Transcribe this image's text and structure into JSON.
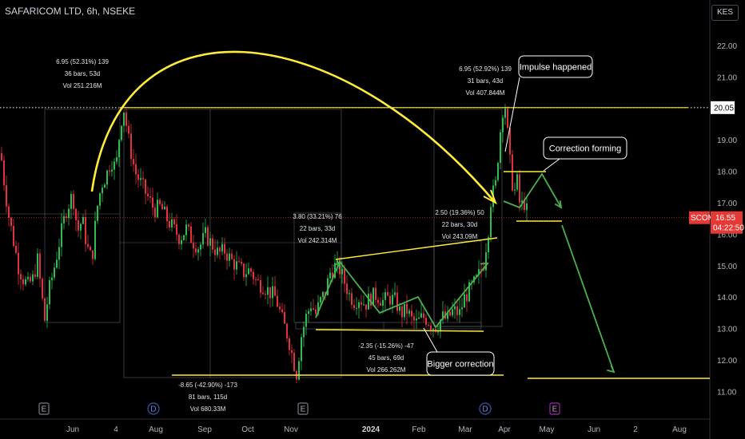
{
  "header": {
    "title": "SAFARICOM LTD, 6h, NSEKE",
    "currency": "KES"
  },
  "colors": {
    "background": "#000000",
    "up_candle": "#2ebd4f",
    "down_candle": "#e0333f",
    "trendline": "#ffeb3b",
    "arrow": "#4caf50",
    "price_tag": "#e53935"
  },
  "chart_data": {
    "type": "candlestick",
    "symbol": "SCOM",
    "last_price": "16.55",
    "countdown": "04:22:50",
    "resistance_price": "20.05",
    "ylim": [
      10.5,
      23.0
    ],
    "y_ticks": [
      "22.00",
      "21.00",
      "19.00",
      "18.00",
      "17.00",
      "16.00",
      "15.00",
      "14.00",
      "13.00",
      "12.00",
      "11.00"
    ],
    "x_ticks": [
      "Jun",
      "4",
      "Aug",
      "Sep",
      "Oct",
      "Nov",
      "2024",
      "Feb",
      "Mar",
      "Apr",
      "May",
      "Jun",
      "2",
      "Aug"
    ],
    "earnings_markers": [
      "E",
      "D",
      "E",
      "D",
      "E"
    ],
    "price_path": [
      [
        0,
        18.6
      ],
      [
        5,
        17.5
      ],
      [
        10,
        16.6
      ],
      [
        16,
        15.8
      ],
      [
        22,
        15.0
      ],
      [
        28,
        14.6
      ],
      [
        34,
        14.4
      ],
      [
        40,
        14.6
      ],
      [
        46,
        15.2
      ],
      [
        52,
        13.9
      ],
      [
        55,
        13.3
      ],
      [
        60,
        14.2
      ],
      [
        68,
        15.1
      ],
      [
        75,
        16.0
      ],
      [
        82,
        16.8
      ],
      [
        90,
        17.3
      ],
      [
        96,
        16.1
      ],
      [
        102,
        16.5
      ],
      [
        108,
        15.6
      ],
      [
        114,
        15.2
      ],
      [
        120,
        16.8
      ],
      [
        126,
        17.6
      ],
      [
        132,
        17.9
      ],
      [
        138,
        18.4
      ],
      [
        144,
        18.1
      ],
      [
        150,
        19.6
      ],
      [
        154,
        20.0
      ],
      [
        160,
        19.0
      ],
      [
        168,
        18.0
      ],
      [
        176,
        17.6
      ],
      [
        184,
        17.2
      ],
      [
        192,
        16.8
      ],
      [
        200,
        16.9
      ],
      [
        208,
        16.5
      ],
      [
        216,
        16.2
      ],
      [
        224,
        15.9
      ],
      [
        232,
        16.2
      ],
      [
        240,
        15.8
      ],
      [
        248,
        15.6
      ],
      [
        256,
        16.0
      ],
      [
        264,
        15.7
      ],
      [
        272,
        15.4
      ],
      [
        280,
        15.5
      ],
      [
        288,
        15.2
      ],
      [
        296,
        15.0
      ],
      [
        304,
        14.8
      ],
      [
        312,
        14.9
      ],
      [
        320,
        14.5
      ],
      [
        328,
        14.4
      ],
      [
        336,
        14.2
      ],
      [
        344,
        14.0
      ],
      [
        352,
        13.3
      ],
      [
        360,
        12.7
      ],
      [
        366,
        12.0
      ],
      [
        370,
        11.6
      ],
      [
        376,
        12.8
      ],
      [
        382,
        13.4
      ],
      [
        388,
        13.8
      ],
      [
        394,
        13.5
      ],
      [
        400,
        13.9
      ],
      [
        406,
        14.2
      ],
      [
        412,
        14.8
      ],
      [
        418,
        15.0
      ],
      [
        424,
        14.9
      ],
      [
        430,
        14.5
      ],
      [
        436,
        14.1
      ],
      [
        442,
        13.9
      ],
      [
        448,
        14.0
      ],
      [
        456,
        13.8
      ],
      [
        462,
        14.0
      ],
      [
        470,
        14.1
      ],
      [
        478,
        13.9
      ],
      [
        486,
        14.0
      ],
      [
        494,
        13.9
      ],
      [
        500,
        13.5
      ],
      [
        508,
        13.6
      ],
      [
        514,
        13.3
      ],
      [
        520,
        13.2
      ],
      [
        528,
        13.4
      ],
      [
        534,
        13.3
      ],
      [
        540,
        13.1
      ],
      [
        546,
        13.1
      ],
      [
        552,
        13.4
      ],
      [
        558,
        13.3
      ],
      [
        566,
        13.6
      ],
      [
        574,
        13.5
      ],
      [
        580,
        14.0
      ],
      [
        588,
        14.3
      ],
      [
        596,
        14.6
      ],
      [
        604,
        15.1
      ],
      [
        610,
        16.2
      ],
      [
        614,
        17.4
      ],
      [
        618,
        17.3
      ],
      [
        622,
        18.5
      ],
      [
        626,
        19.6
      ],
      [
        630,
        20.4
      ],
      [
        634,
        19.2
      ],
      [
        638,
        18.0
      ],
      [
        642,
        17.3
      ],
      [
        646,
        17.7
      ],
      [
        650,
        16.8
      ],
      [
        654,
        17.1
      ],
      [
        660,
        16.6
      ]
    ],
    "measurements": [
      {
        "line1": "6.95 (52.31%) 139",
        "line2": "36 bars, 53d",
        "line3": "Vol 251.216M"
      },
      {
        "line1": "-8.65 (-42.90%) -173",
        "line2": "81 bars, 115d",
        "line3": "Vol 680.33M"
      },
      {
        "line1": "3.80 (33.21%) 76",
        "line2": "22 bars, 33d",
        "line3": "Vol 242.314M"
      },
      {
        "line1": "-2.35 (-15.26%) -47",
        "line2": "45 bars, 69d",
        "line3": "Vol 266.262M"
      },
      {
        "line1": "2.50 (19.36%) 50",
        "line2": "22 bars, 30d",
        "line3": "Vol 243.09M"
      },
      {
        "line1": "6.95 (52.92%) 139",
        "line2": "31 bars, 43d",
        "line3": "Vol 407.844M"
      }
    ],
    "annotations": {
      "impulse": "Impulse happened",
      "correction_forming": "Correction forming",
      "bigger_correction": "Bigger correction"
    }
  }
}
